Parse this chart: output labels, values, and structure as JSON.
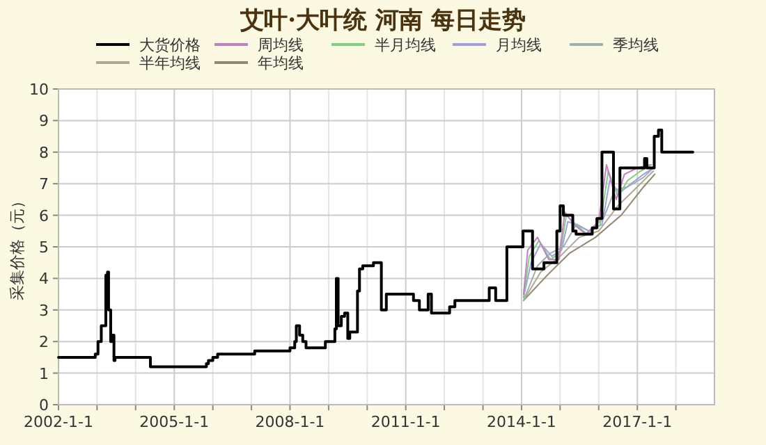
{
  "chart_data": {
    "type": "step",
    "title": "艾叶·大叶统 河南 每日走势",
    "ylabel": "采集价格（元）",
    "xlim": [
      "2002-01-01",
      "2019-01-01"
    ],
    "xticks": [
      {
        "value": "2002-01-01",
        "label": "2002-1-1"
      },
      {
        "value": "2003-01-01",
        "label": null
      },
      {
        "value": "2004-01-01",
        "label": null
      },
      {
        "value": "2005-01-01",
        "label": "2005-1-1"
      },
      {
        "value": "2006-01-01",
        "label": null
      },
      {
        "value": "2007-01-01",
        "label": null
      },
      {
        "value": "2008-01-01",
        "label": "2008-1-1"
      },
      {
        "value": "2009-01-01",
        "label": null
      },
      {
        "value": "2010-01-01",
        "label": null
      },
      {
        "value": "2011-01-01",
        "label": "2011-1-1"
      },
      {
        "value": "2012-01-01",
        "label": null
      },
      {
        "value": "2013-01-01",
        "label": null
      },
      {
        "value": "2014-01-01",
        "label": "2014-1-1"
      },
      {
        "value": "2015-01-01",
        "label": null
      },
      {
        "value": "2016-01-01",
        "label": null
      },
      {
        "value": "2017-01-01",
        "label": "2017-1-1"
      },
      {
        "value": "2018-01-01",
        "label": null
      }
    ],
    "ylim": [
      0,
      10
    ],
    "yticks": [
      0,
      1,
      2,
      3,
      4,
      5,
      6,
      7,
      8,
      9,
      10
    ],
    "grid": true,
    "legend": "top",
    "series": [
      {
        "name": "大货价格",
        "color": "#000000",
        "x": [
          "2002-01-01",
          "2002-12-15",
          "2003-01-10",
          "2003-02-10",
          "2003-03-25",
          "2003-04-10",
          "2003-04-20",
          "2003-05-10",
          "2003-05-20",
          "2003-06-10",
          "2003-06-20",
          "2003-07-05",
          "2004-05-20",
          "2005-11-01",
          "2005-11-20",
          "2006-01-01",
          "2006-02-15",
          "2006-04-15",
          "2007-02-01",
          "2008-01-01",
          "2008-02-15",
          "2008-03-01",
          "2008-04-01",
          "2008-05-01",
          "2008-06-01",
          "2008-07-01",
          "2008-12-01",
          "2009-03-01",
          "2009-03-15",
          "2009-04-01",
          "2009-05-01",
          "2009-06-01",
          "2009-07-01",
          "2009-07-20",
          "2009-10-01",
          "2009-10-20",
          "2009-11-20",
          "2010-01-01",
          "2010-03-01",
          "2010-05-15",
          "2010-07-01",
          "2011-03-15",
          "2011-05-10",
          "2011-08-01",
          "2011-09-01",
          "2012-02-20",
          "2012-04-10",
          "2013-03-01",
          "2013-05-01",
          "2013-08-15",
          "2014-01-15",
          "2014-04-15",
          "2014-08-01",
          "2014-12-01",
          "2015-01-01",
          "2015-02-01",
          "2015-05-01",
          "2015-06-01",
          "2015-07-01",
          "2015-11-01",
          "2015-12-15",
          "2016-02-01",
          "2016-05-20",
          "2016-07-20",
          "2017-03-10",
          "2017-04-01",
          "2017-06-10",
          "2017-07-20",
          "2017-08-20",
          "2018-06-10"
        ],
        "values": [
          1.5,
          1.6,
          2.0,
          2.5,
          4.1,
          4.2,
          3.0,
          2.0,
          2.2,
          1.4,
          1.5,
          1.5,
          1.2,
          1.3,
          1.4,
          1.5,
          1.6,
          1.6,
          1.7,
          1.8,
          2.0,
          2.5,
          2.2,
          2.0,
          1.8,
          1.8,
          2.0,
          2.4,
          4.0,
          2.5,
          2.8,
          2.9,
          2.1,
          2.3,
          3.6,
          4.3,
          4.4,
          4.4,
          4.5,
          3.0,
          3.5,
          3.3,
          3.0,
          3.5,
          2.9,
          3.1,
          3.3,
          3.7,
          3.3,
          5.0,
          5.5,
          4.3,
          4.5,
          5.5,
          6.3,
          6.0,
          5.5,
          5.4,
          5.4,
          5.6,
          5.9,
          8.0,
          6.2,
          7.5,
          7.8,
          7.5,
          8.5,
          8.7,
          8.0,
          8.0
        ]
      },
      {
        "name": "周均线",
        "color": "#c080c0",
        "type": "line",
        "x": [
          "2014-01-20",
          "2014-03-01",
          "2014-06-01",
          "2014-09-15",
          "2014-12-20",
          "2015-02-15",
          "2015-05-15",
          "2015-09-01",
          "2016-01-01",
          "2016-03-15",
          "2016-06-15",
          "2016-09-01",
          "2017-01-01",
          "2017-05-01"
        ],
        "values": [
          3.5,
          4.9,
          5.3,
          4.6,
          4.6,
          6.1,
          5.7,
          5.4,
          5.8,
          7.6,
          6.5,
          7.3,
          7.5,
          7.6
        ]
      },
      {
        "name": "半月均线",
        "color": "#80d080",
        "type": "line",
        "x": [
          "2014-01-20",
          "2014-03-15",
          "2014-06-15",
          "2014-10-01",
          "2015-01-01",
          "2015-03-01",
          "2015-06-01",
          "2015-09-15",
          "2016-01-15",
          "2016-04-01",
          "2016-07-01",
          "2016-10-01",
          "2017-02-01",
          "2017-05-15"
        ],
        "values": [
          3.4,
          4.7,
          5.2,
          4.6,
          4.8,
          6.0,
          5.7,
          5.4,
          5.7,
          7.4,
          6.6,
          7.1,
          7.4,
          7.6
        ]
      },
      {
        "name": "月均线",
        "color": "#a0a0e0",
        "type": "line",
        "x": [
          "2014-01-20",
          "2014-04-01",
          "2014-07-01",
          "2014-10-15",
          "2015-01-15",
          "2015-03-15",
          "2015-06-15",
          "2015-10-01",
          "2016-02-01",
          "2016-04-15",
          "2016-07-15",
          "2016-11-01",
          "2017-03-01",
          "2017-06-01"
        ],
        "values": [
          3.4,
          4.5,
          5.1,
          4.7,
          4.9,
          5.8,
          5.7,
          5.5,
          5.7,
          7.1,
          6.7,
          7.0,
          7.3,
          7.5
        ]
      },
      {
        "name": "季均线",
        "color": "#a0b0b0",
        "type": "line",
        "x": [
          "2014-01-20",
          "2014-06-01",
          "2014-10-01",
          "2015-02-01",
          "2015-06-01",
          "2015-10-01",
          "2016-02-15",
          "2016-06-01",
          "2016-10-01",
          "2017-03-01",
          "2017-06-01"
        ],
        "values": [
          3.3,
          4.4,
          4.8,
          5.0,
          5.7,
          5.5,
          5.9,
          6.8,
          6.9,
          7.2,
          7.5
        ]
      },
      {
        "name": "半年均线",
        "color": "#b0a890",
        "type": "line",
        "x": [
          "2014-01-20",
          "2014-07-01",
          "2015-01-01",
          "2015-07-01",
          "2016-01-01",
          "2016-07-01",
          "2017-01-01",
          "2017-06-01"
        ],
        "values": [
          3.3,
          4.2,
          4.7,
          5.3,
          5.5,
          6.3,
          6.9,
          7.4
        ]
      },
      {
        "name": "年均线",
        "color": "#908870",
        "type": "line",
        "x": [
          "2014-01-20",
          "2014-09-01",
          "2015-04-01",
          "2015-12-01",
          "2016-08-01",
          "2017-03-01",
          "2017-06-15"
        ],
        "values": [
          3.3,
          4.1,
          4.8,
          5.3,
          6.0,
          6.9,
          7.3
        ]
      }
    ]
  }
}
